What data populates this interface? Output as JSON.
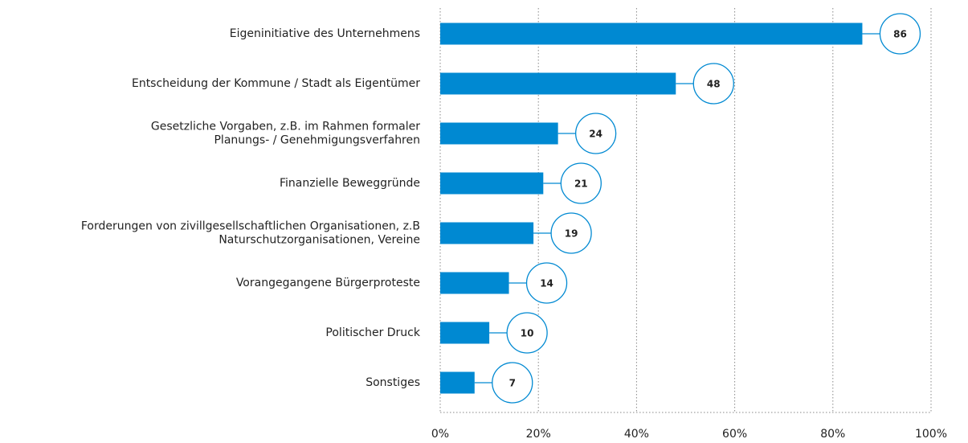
{
  "chart_data": {
    "type": "barh",
    "categories": [
      "Eigeninitiative des Unternehmens",
      "Entscheidung der Kommune / Stadt als Eigentümer",
      "Gesetzliche Vorgaben, z.B. im Rahmen formaler\nPlanungs- / Genehmigungsverfahren",
      "Finanzielle Beweggründe",
      "Forderungen von zivillgesellschaftlichen Organisationen, z.B\nNaturschutzorganisationen, Vereine",
      "Vorangegangene Bürgerproteste",
      "Politischer Druck",
      "Sonstiges"
    ],
    "values": [
      86,
      48,
      24,
      21,
      19,
      14,
      10,
      7
    ],
    "color": "#0089d2",
    "xlim": [
      0,
      100
    ],
    "xticks": [
      {
        "value": 0,
        "label": "0%"
      },
      {
        "value": 20,
        "label": "20%"
      },
      {
        "value": 40,
        "label": "40%"
      },
      {
        "value": 60,
        "label": "60%"
      },
      {
        "value": 80,
        "label": "80%"
      },
      {
        "value": 100,
        "label": "100%"
      }
    ],
    "grid": true
  }
}
